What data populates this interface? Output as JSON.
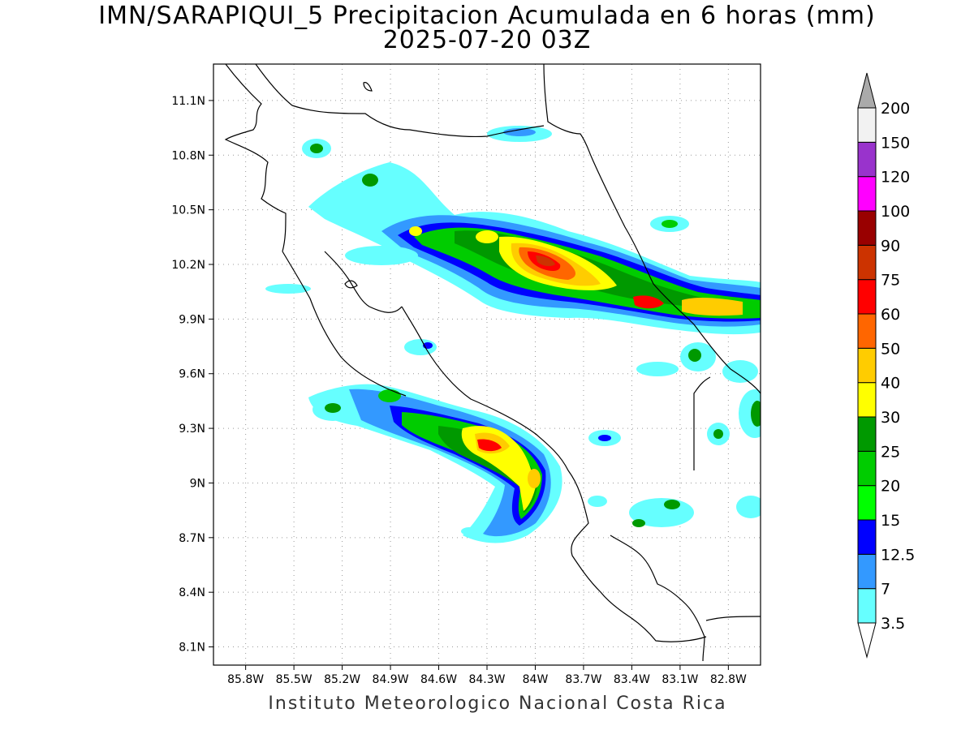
{
  "title": {
    "line1": "IMN/SARAPIQUI_5 Precipitacion Acumulada en 6 horas (mm)",
    "line2": "2025-07-20 03Z"
  },
  "credit": "Instituto Meteorologico Nacional Costa Rica",
  "map": {
    "lon_range": [
      -86.0,
      -82.6
    ],
    "lat_range": [
      8.0,
      11.3
    ],
    "lat_ticks": [
      "11.1N",
      "10.8N",
      "10.5N",
      "10.2N",
      "9.9N",
      "9.6N",
      "9.3N",
      "9N",
      "8.7N",
      "8.4N",
      "8.1N"
    ],
    "lon_ticks": [
      "85.8W",
      "85.5W",
      "85.2W",
      "84.9W",
      "84.6W",
      "84.3W",
      "84W",
      "83.7W",
      "83.4W",
      "83.1W",
      "82.8W"
    ],
    "grid": "dotted"
  },
  "colorbar": {
    "levels": [
      "3.5",
      "7",
      "12.5",
      "15",
      "20",
      "25",
      "30",
      "40",
      "50",
      "60",
      "75",
      "90",
      "100",
      "120",
      "150",
      "200"
    ],
    "colors": [
      "#66ffff",
      "#3399ff",
      "#0000ff",
      "#00ff00",
      "#00cc00",
      "#009900",
      "#ffff00",
      "#ffcc00",
      "#ff6600",
      "#ff0000",
      "#cc3300",
      "#990000",
      "#ff00ff",
      "#9933cc",
      "#f2f2f2",
      "#aaaaaa"
    ]
  }
}
